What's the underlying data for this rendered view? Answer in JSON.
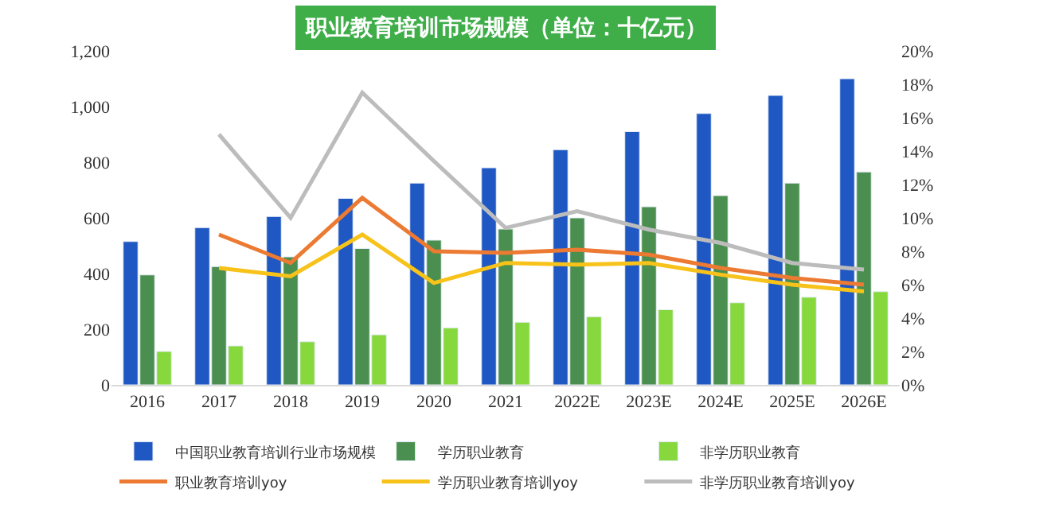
{
  "chart_data": {
    "type": "bar",
    "title": "职业教育培训市场规模（单位：十亿元）",
    "categories": [
      "2016",
      "2017",
      "2018",
      "2019",
      "2020",
      "2021",
      "2022E",
      "2023E",
      "2024E",
      "2025E",
      "2026E"
    ],
    "series": [
      {
        "name": "中国职业教育培训行业市场规模",
        "color": "#1f57c3",
        "values": [
          515,
          565,
          605,
          670,
          725,
          780,
          845,
          910,
          975,
          1040,
          1100
        ]
      },
      {
        "name": "学历职业教育",
        "color": "#4a8f4f",
        "values": [
          395,
          425,
          460,
          490,
          520,
          560,
          600,
          640,
          680,
          725,
          765
        ]
      },
      {
        "name": "非学历职业教育",
        "color": "#86d83c",
        "values": [
          120,
          140,
          155,
          180,
          205,
          225,
          245,
          270,
          295,
          315,
          335
        ]
      },
      {
        "name": "职业教育培训yoy",
        "type": "line",
        "axis": "y2",
        "color": "#ec7a32",
        "values": [
          null,
          9.0,
          7.3,
          11.2,
          8.0,
          7.9,
          8.1,
          7.8,
          7.0,
          6.4,
          6.0
        ]
      },
      {
        "name": "学历职业教育培训yoy",
        "type": "line",
        "axis": "y2",
        "color": "#f7c21a",
        "values": [
          null,
          7.0,
          6.5,
          9.0,
          6.1,
          7.3,
          7.2,
          7.3,
          6.6,
          6.0,
          5.6
        ]
      },
      {
        "name": "非学历职业教育培训yoy",
        "type": "line",
        "axis": "y2",
        "color": "#bcbcbc",
        "values": [
          null,
          15.0,
          10.0,
          17.5,
          13.4,
          9.4,
          10.4,
          9.3,
          8.5,
          7.3,
          6.9
        ]
      }
    ],
    "ylim": [
      0,
      1200
    ],
    "yticks": [
      0,
      {
        "value": 200,
        "label": "200"
      },
      {
        "value": 400,
        "label": "400"
      },
      {
        "value": 600,
        "label": "600"
      },
      {
        "value": 800,
        "label": "800"
      },
      {
        "value": 1000,
        "label": "1,000"
      },
      {
        "value": 1200,
        "label": "1,200"
      }
    ],
    "y2lim": [
      0,
      20
    ],
    "y2ticks": [
      {
        "value": 0,
        "label": "0%"
      },
      {
        "value": 2,
        "label": "2%"
      },
      {
        "value": 4,
        "label": "4%"
      },
      {
        "value": 6,
        "label": "6%"
      },
      {
        "value": 8,
        "label": "8%"
      },
      {
        "value": 10,
        "label": "10%"
      },
      {
        "value": 12,
        "label": "12%"
      },
      {
        "value": 14,
        "label": "14%"
      },
      {
        "value": 16,
        "label": "16%"
      },
      {
        "value": 18,
        "label": "18%"
      },
      {
        "value": 20,
        "label": "20%"
      }
    ],
    "legend": "bottom",
    "marker": "none",
    "line_style": "solid"
  }
}
